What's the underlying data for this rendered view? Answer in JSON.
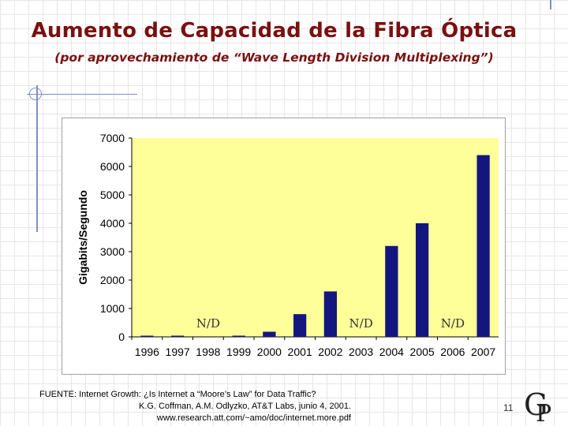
{
  "slide": {
    "title": "Aumento de Capacidad de la Fibra Óptica",
    "subtitle": "(por aprovechamiento de “Wave Length Division Multiplexing”)",
    "page_number": "11",
    "logo_letters": "GP"
  },
  "source": {
    "line1": "FUENTE: Internet Growth: ¿Is Internet a “Moore’s Law” for Data Traffic?",
    "line2": "K.G. Coffman, A.M. Odlyzko, AT&T Labs, junio 4, 2001.",
    "line3": "www.research.att.com/~amo/doc/internet.more.pdf"
  },
  "chart_data": {
    "type": "bar",
    "title": "",
    "xlabel": "",
    "ylabel": "Gigabits/Segundo",
    "ylim": [
      0,
      7000
    ],
    "yticks": [
      "0",
      "1000",
      "2000",
      "3000",
      "4000",
      "5000",
      "6000",
      "7000"
    ],
    "categories": [
      "1996",
      "1997",
      "1998",
      "1999",
      "2000",
      "2001",
      "2002",
      "2003",
      "2004",
      "2005",
      "2006",
      "2007"
    ],
    "values": [
      10,
      10,
      null,
      40,
      180,
      800,
      1600,
      null,
      3200,
      4000,
      null,
      6400
    ],
    "na_label": "N/D",
    "grid": false,
    "colors": {
      "bar": "#14167f",
      "plot_bg": "#ffff99",
      "text": "#000000",
      "na_text": "#333333"
    }
  }
}
